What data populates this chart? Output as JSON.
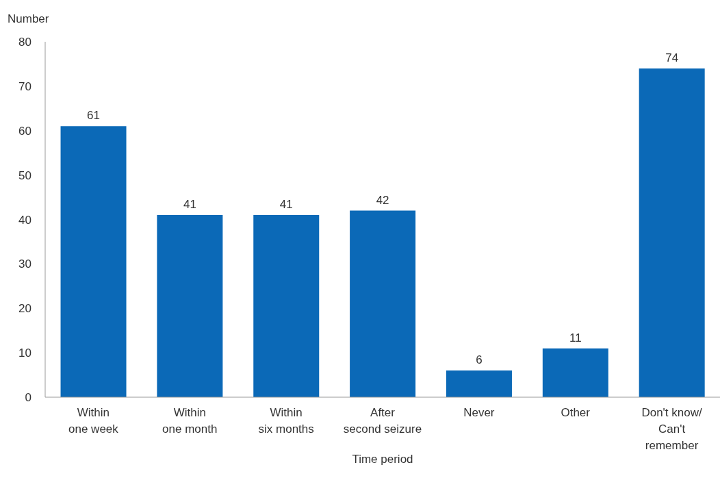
{
  "chart_data": {
    "type": "bar",
    "categories": [
      "Within\none week",
      "Within\none month",
      "Within\nsix months",
      "After\nsecond seizure",
      "Never",
      "Other",
      "Don't know/\nCan't\nremember"
    ],
    "values": [
      61,
      41,
      41,
      42,
      6,
      11,
      74
    ],
    "color": "#0b69b7",
    "xlabel": "Time period",
    "ylabel": "Number",
    "ylim": [
      0,
      80
    ],
    "yticks": [
      0,
      10,
      20,
      30,
      40,
      50,
      60,
      70,
      80
    ],
    "data_labels": true,
    "grid": false,
    "legend": false
  }
}
